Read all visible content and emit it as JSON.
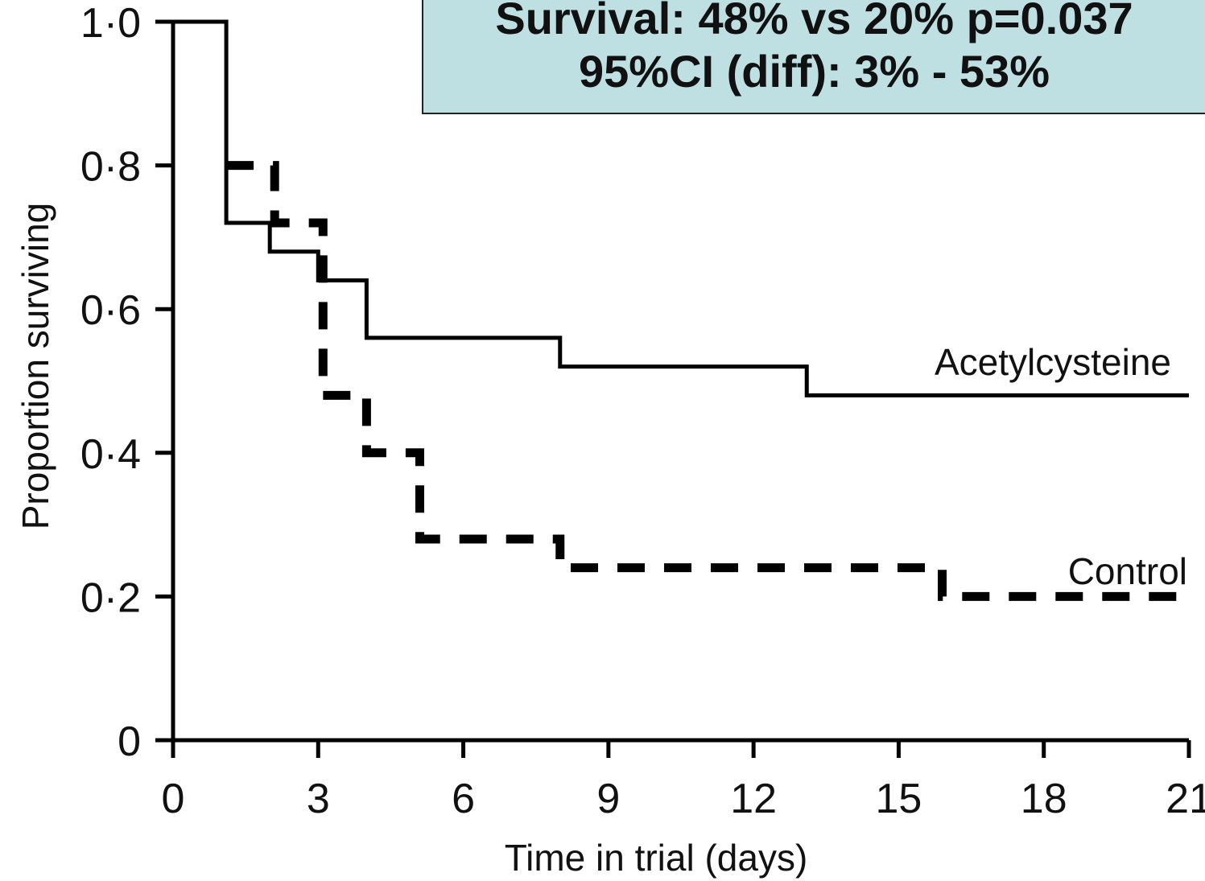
{
  "chart_data": {
    "type": "line",
    "title": "",
    "xlabel": "Time in trial (days)",
    "ylabel": "Proportion surviving",
    "xlim": [
      0,
      21
    ],
    "ylim": [
      0,
      1.0
    ],
    "x_ticks": [
      0,
      3,
      6,
      9,
      12,
      15,
      18,
      21
    ],
    "x_tick_labels": [
      "0",
      "3",
      "6",
      "9",
      "12",
      "15",
      "18",
      "21"
    ],
    "y_ticks": [
      0,
      0.2,
      0.4,
      0.6,
      0.8,
      1.0
    ],
    "y_tick_labels": [
      "0",
      "0·2",
      "0·4",
      "0·6",
      "0·8",
      "1·0"
    ],
    "grid": false,
    "series": [
      {
        "name": "Acetylcysteine",
        "style": "solid",
        "step_x": [
          0,
          1.1,
          2,
          3,
          4,
          8,
          13.1,
          21
        ],
        "step_y": [
          1.0,
          0.72,
          0.68,
          0.64,
          0.56,
          0.52,
          0.48,
          0.48
        ]
      },
      {
        "name": "Control",
        "style": "dashed",
        "step_x": [
          1.1,
          2.1,
          3.1,
          4,
          5.1,
          8,
          15.9,
          21
        ],
        "step_y": [
          0.8,
          0.72,
          0.48,
          0.4,
          0.28,
          0.24,
          0.2,
          0.2
        ]
      }
    ],
    "annotation": {
      "line1": "Survival:  48% vs 20%  p=0.037",
      "line2": "95%CI (diff):  3% - 53%"
    },
    "colors": {
      "line": "#000000",
      "annotation_bg": "#bfe0e3"
    }
  }
}
